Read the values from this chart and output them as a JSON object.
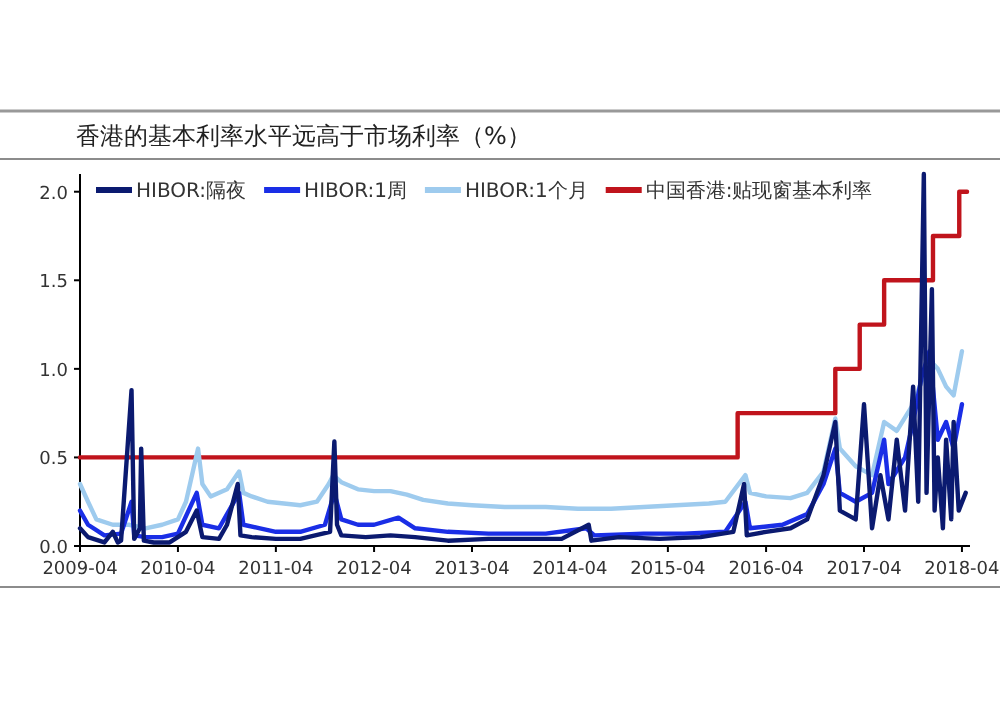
{
  "chart_data": {
    "type": "line",
    "title": "香港的基本利率水平远高于市场利率（%）",
    "xlim": [
      "2009-04",
      "2018-05"
    ],
    "xticks": [
      "2009-04",
      "2010-04",
      "2011-04",
      "2012-04",
      "2013-04",
      "2014-04",
      "2015-04",
      "2016-04",
      "2017-04",
      "2018-04"
    ],
    "ylim": [
      0,
      2.1
    ],
    "yticks": [
      {
        "value": 0,
        "label": "0.0"
      },
      {
        "value": 0.5,
        "label": "0.5"
      },
      {
        "value": 1,
        "label": "1.0"
      },
      {
        "value": 1.5,
        "label": "1.5"
      },
      {
        "value": 2,
        "label": "2.0"
      }
    ],
    "legend": "top",
    "series": [
      {
        "name": "HIBOR:隔夜",
        "color": "#0b1a70",
        "x": [
          "2009-04",
          "2009-05",
          "2009-07",
          "2009-08",
          "2009-08-20",
          "2009-09",
          "2009-10-10",
          "2009-10-20",
          "2009-11-10",
          "2009-11-15",
          "2009-11-25",
          "2010-01",
          "2010-03",
          "2010-05",
          "2010-06-10",
          "2010-07",
          "2010-09",
          "2010-10",
          "2010-11-10",
          "2010-11-20",
          "2011-01",
          "2011-04",
          "2011-07",
          "2011-10-20",
          "2011-11-05",
          "2011-11-15",
          "2011-12",
          "2012-03",
          "2012-06",
          "2012-09",
          "2013-01",
          "2013-06",
          "2013-10",
          "2014-03",
          "2014-06-10",
          "2014-06-20",
          "2014-10",
          "2015-03",
          "2015-08",
          "2015-12",
          "2016-01-10",
          "2016-01-20",
          "2016-04",
          "2016-07",
          "2016-09",
          "2016-11",
          "2016-12-15",
          "2017-01",
          "2017-03",
          "2017-04",
          "2017-05",
          "2017-06",
          "2017-07",
          "2017-08",
          "2017-09",
          "2017-10",
          "2017-10-20",
          "2017-11-10",
          "2017-11-20",
          "2017-12-10",
          "2017-12-20",
          "2018-01",
          "2018-01-20",
          "2018-02",
          "2018-02-20",
          "2018-03",
          "2018-03-20",
          "2018-04-15"
        ],
        "values": [
          0.1,
          0.05,
          0.02,
          0.08,
          0.02,
          0.03,
          0.88,
          0.04,
          0.1,
          0.55,
          0.03,
          0.02,
          0.02,
          0.08,
          0.2,
          0.05,
          0.04,
          0.12,
          0.35,
          0.06,
          0.05,
          0.04,
          0.04,
          0.08,
          0.59,
          0.12,
          0.06,
          0.05,
          0.06,
          0.05,
          0.03,
          0.04,
          0.04,
          0.04,
          0.12,
          0.03,
          0.05,
          0.04,
          0.05,
          0.08,
          0.35,
          0.06,
          0.08,
          0.1,
          0.15,
          0.4,
          0.7,
          0.2,
          0.15,
          0.8,
          0.1,
          0.4,
          0.15,
          0.6,
          0.2,
          0.9,
          0.25,
          2.1,
          0.3,
          1.45,
          0.2,
          0.5,
          0.1,
          0.6,
          0.15,
          0.7,
          0.2,
          0.3
        ]
      },
      {
        "name": "HIBOR:1周",
        "color": "#1a2ee6",
        "x": [
          "2009-04",
          "2009-05",
          "2009-07",
          "2009-09",
          "2009-10-10",
          "2009-10-20",
          "2009-12",
          "2010-02",
          "2010-04",
          "2010-06-10",
          "2010-07",
          "2010-09",
          "2010-10",
          "2010-11-15",
          "2010-12",
          "2011-02",
          "2011-04",
          "2011-07",
          "2011-10",
          "2011-11-05",
          "2011-12",
          "2012-02",
          "2012-04",
          "2012-07",
          "2012-09",
          "2013-01",
          "2013-06",
          "2014-01",
          "2014-06",
          "2014-07",
          "2015-01",
          "2015-06",
          "2015-11",
          "2016-01-15",
          "2016-02",
          "2016-06",
          "2016-09",
          "2016-11",
          "2016-12-15",
          "2017-01",
          "2017-03",
          "2017-05",
          "2017-06-15",
          "2017-07",
          "2017-09",
          "2017-10",
          "2017-11",
          "2017-12",
          "2018-01",
          "2018-02",
          "2018-03",
          "2018-04"
        ],
        "values": [
          0.2,
          0.12,
          0.06,
          0.07,
          0.25,
          0.06,
          0.05,
          0.05,
          0.07,
          0.3,
          0.12,
          0.1,
          0.18,
          0.3,
          0.12,
          0.1,
          0.08,
          0.08,
          0.12,
          0.3,
          0.15,
          0.12,
          0.12,
          0.16,
          0.1,
          0.08,
          0.07,
          0.07,
          0.1,
          0.06,
          0.07,
          0.07,
          0.08,
          0.25,
          0.1,
          0.12,
          0.18,
          0.35,
          0.55,
          0.3,
          0.25,
          0.3,
          0.6,
          0.35,
          0.5,
          0.7,
          0.95,
          1.1,
          0.6,
          0.7,
          0.55,
          0.8
        ]
      },
      {
        "name": "HIBOR:1个月",
        "color": "#9ecbee",
        "x": [
          "2009-04",
          "2009-05",
          "2009-06",
          "2009-08",
          "2009-10",
          "2009-12",
          "2010-02",
          "2010-04",
          "2010-05",
          "2010-06-15",
          "2010-07",
          "2010-08",
          "2010-10",
          "2010-11-15",
          "2010-12",
          "2011-01",
          "2011-03",
          "2011-05",
          "2011-07",
          "2011-09",
          "2011-10-15",
          "2011-11",
          "2011-12",
          "2012-02",
          "2012-04",
          "2012-06",
          "2012-08",
          "2012-10",
          "2013-01",
          "2013-04",
          "2013-08",
          "2014-01",
          "2014-05",
          "2014-09",
          "2015-01",
          "2015-05",
          "2015-09",
          "2015-11",
          "2016-01-15",
          "2016-02",
          "2016-04",
          "2016-07",
          "2016-09",
          "2016-11",
          "2016-12-15",
          "2017-01",
          "2017-03",
          "2017-05",
          "2017-06-15",
          "2017-08",
          "2017-10",
          "2017-12",
          "2018-01",
          "2018-02",
          "2018-03",
          "2018-04"
        ],
        "values": [
          0.35,
          0.25,
          0.15,
          0.12,
          0.12,
          0.1,
          0.12,
          0.15,
          0.25,
          0.55,
          0.35,
          0.28,
          0.32,
          0.42,
          0.3,
          0.28,
          0.25,
          0.24,
          0.23,
          0.25,
          0.35,
          0.4,
          0.36,
          0.32,
          0.31,
          0.31,
          0.29,
          0.26,
          0.24,
          0.23,
          0.22,
          0.22,
          0.21,
          0.21,
          0.22,
          0.23,
          0.24,
          0.25,
          0.4,
          0.3,
          0.28,
          0.27,
          0.3,
          0.42,
          0.72,
          0.55,
          0.45,
          0.4,
          0.7,
          0.65,
          0.8,
          1.05,
          1.0,
          0.9,
          0.85,
          1.1
        ]
      },
      {
        "name": "中国香港:贴现窗基本利率",
        "color": "#c0141c",
        "type": "step",
        "x": [
          "2009-04",
          "2015-12-17",
          "2016-12-15",
          "2017-03-16",
          "2017-06-15",
          "2017-12-14",
          "2018-03-22",
          "2018-04-20"
        ],
        "values": [
          0.5,
          0.75,
          1.0,
          1.25,
          1.5,
          1.75,
          2.0,
          2.0
        ]
      }
    ]
  }
}
